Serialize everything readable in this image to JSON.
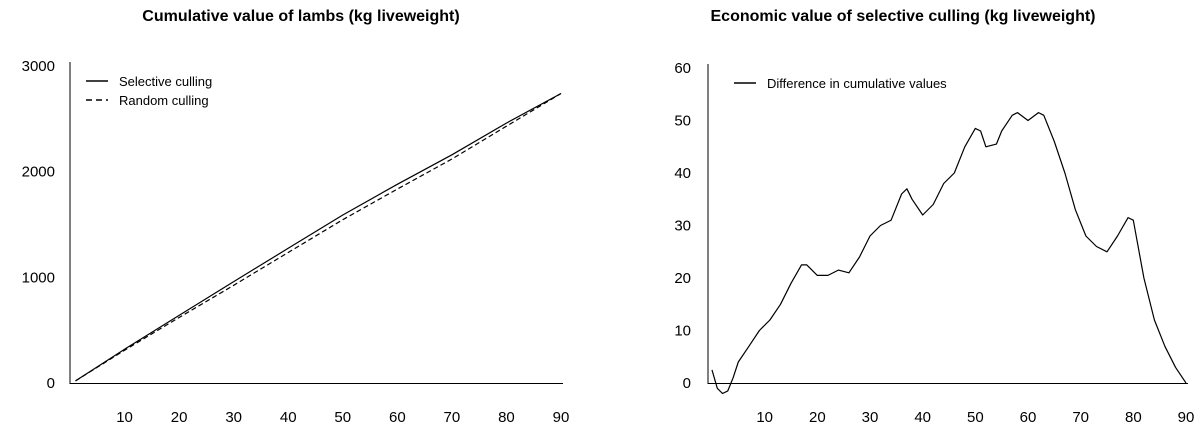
{
  "chart_data": [
    {
      "type": "line",
      "title": "Cumulative value of lambs (kg liveweight)",
      "xlabel": "",
      "ylabel": "",
      "xlim": [
        0,
        90
      ],
      "ylim": [
        0,
        3000
      ],
      "x_ticks": [
        10,
        20,
        30,
        40,
        50,
        60,
        70,
        80,
        90
      ],
      "y_ticks": [
        0,
        1000,
        2000,
        3000
      ],
      "grid": false,
      "legend_position": "top-left",
      "series": [
        {
          "name": "Selective culling",
          "style": "solid",
          "color": "#000000",
          "x": [
            1,
            10,
            20,
            30,
            40,
            50,
            60,
            70,
            80,
            90
          ],
          "y": [
            20,
            320,
            640,
            960,
            1275,
            1590,
            1880,
            2160,
            2460,
            2740
          ]
        },
        {
          "name": "Random culling",
          "style": "dashed",
          "color": "#000000",
          "x": [
            1,
            10,
            20,
            30,
            40,
            50,
            60,
            70,
            80,
            90
          ],
          "y": [
            20,
            310,
            620,
            925,
            1235,
            1545,
            1835,
            2120,
            2430,
            2740
          ]
        }
      ]
    },
    {
      "type": "line",
      "title": "Economic value of selective culling (kg liveweight)",
      "xlabel": "",
      "ylabel": "",
      "xlim": [
        0,
        90
      ],
      "ylim": [
        0,
        60
      ],
      "x_ticks": [
        10,
        20,
        30,
        40,
        50,
        60,
        70,
        80,
        90
      ],
      "y_ticks": [
        0,
        10,
        20,
        30,
        40,
        50,
        60
      ],
      "grid": false,
      "legend_position": "top-left",
      "series": [
        {
          "name": "Difference in cumulative values",
          "style": "solid",
          "color": "#000000",
          "x": [
            0,
            1,
            2,
            3,
            4,
            5,
            7,
            9,
            11,
            13,
            15,
            17,
            18,
            20,
            22,
            24,
            26,
            28,
            30,
            32,
            34,
            36,
            37,
            38,
            40,
            42,
            44,
            46,
            48,
            50,
            51,
            52,
            54,
            55,
            57,
            58,
            60,
            62,
            63,
            65,
            67,
            69,
            71,
            73,
            75,
            77,
            79,
            80,
            82,
            84,
            86,
            88,
            90
          ],
          "y": [
            2.5,
            -1,
            -2,
            -1.5,
            1,
            4,
            7,
            10,
            12,
            15,
            19,
            22.5,
            22.5,
            20.5,
            20.5,
            21.5,
            21,
            24,
            28,
            30,
            31,
            36,
            37,
            35,
            32,
            34,
            38,
            40,
            45,
            48.5,
            48,
            45,
            45.5,
            48,
            51,
            51.5,
            50,
            51.5,
            51,
            46,
            40,
            33,
            28,
            26,
            25,
            28,
            31.5,
            31,
            20,
            12,
            7,
            3,
            0
          ]
        }
      ]
    }
  ]
}
